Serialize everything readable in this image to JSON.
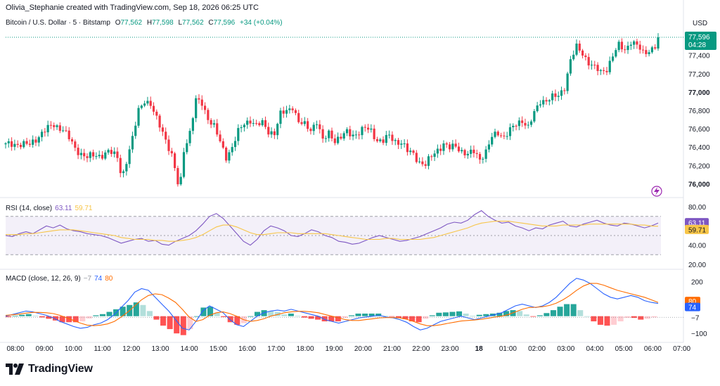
{
  "header": {
    "attribution": "Olivia_Stephanie created with TradingView.com, Sep 18, 2026 06:25 UTC"
  },
  "symbol": {
    "name": "Bitcoin / U.S. Dollar · 5 · Bitstamp",
    "open_label": "O",
    "open": "77,562",
    "high_label": "H",
    "high": "77,598",
    "low_label": "L",
    "low": "77,562",
    "close_label": "C",
    "close": "77,596",
    "change": "+34 (+0.04%)"
  },
  "currency": "USD",
  "price_badge": {
    "price": "77,596",
    "countdown": "04:28",
    "color": "#089981"
  },
  "rsi_label": {
    "title": "RSI (14, close)",
    "rsi_value": "63.11",
    "ma_value": "59.71"
  },
  "macd_label": {
    "title": "MACD (close, 12, 26, 9)",
    "hist_value": "−7",
    "macd_value": "74",
    "signal_value": "80"
  },
  "logo": {
    "text": "TradingView"
  },
  "colors": {
    "up": "#089981",
    "down": "#f23645",
    "rsi_line": "#7e57c2",
    "rsi_ma": "#f7c548",
    "macd_line": "#2962ff",
    "signal_line": "#ff6d00",
    "hist_up_strong": "#26a69a",
    "hist_up_weak": "#b2dfdb",
    "hist_down_strong": "#ff5252",
    "hist_down_weak": "#ffcdd2"
  },
  "chart_data": [
    {
      "type": "candlestick",
      "title": "Bitcoin / U.S. Dollar · 5 · Bitstamp",
      "ylabel": "USD",
      "price_ticks": [
        {
          "label": "77,400",
          "value": 77400,
          "bold": false
        },
        {
          "label": "77,200",
          "value": 77200,
          "bold": false
        },
        {
          "label": "77,000",
          "value": 77000,
          "bold": true
        },
        {
          "label": "76,800",
          "value": 76800,
          "bold": false
        },
        {
          "label": "76,600",
          "value": 76600,
          "bold": false
        },
        {
          "label": "76,400",
          "value": 76400,
          "bold": false
        },
        {
          "label": "76,200",
          "value": 76200,
          "bold": false
        },
        {
          "label": "76,000",
          "value": 76000,
          "bold": true
        }
      ],
      "ylim": [
        75950,
        77650
      ],
      "time_labels": [
        {
          "label": "08:00",
          "bold": false
        },
        {
          "label": "09:00",
          "bold": false
        },
        {
          "label": "10:00",
          "bold": false
        },
        {
          "label": "11:00",
          "bold": false
        },
        {
          "label": "12:00",
          "bold": false
        },
        {
          "label": "13:00",
          "bold": false
        },
        {
          "label": "14:00",
          "bold": false
        },
        {
          "label": "15:00",
          "bold": false
        },
        {
          "label": "16:00",
          "bold": false
        },
        {
          "label": "17:00",
          "bold": false
        },
        {
          "label": "18:00",
          "bold": false
        },
        {
          "label": "19:00",
          "bold": false
        },
        {
          "label": "20:00",
          "bold": false
        },
        {
          "label": "21:00",
          "bold": false
        },
        {
          "label": "22:00",
          "bold": false
        },
        {
          "label": "23:00",
          "bold": false
        },
        {
          "label": "18",
          "bold": true
        },
        {
          "label": "01:00",
          "bold": false
        },
        {
          "label": "02:00",
          "bold": false
        },
        {
          "label": "03:00",
          "bold": false
        },
        {
          "label": "04:00",
          "bold": false
        },
        {
          "label": "05:00",
          "bold": false
        },
        {
          "label": "06:00",
          "bold": false
        },
        {
          "label": "07:00",
          "bold": false
        }
      ],
      "close_path": [
        [
          0,
          76420
        ],
        [
          4,
          76440
        ],
        [
          8,
          76420
        ],
        [
          12,
          76560
        ],
        [
          16,
          76640
        ],
        [
          19,
          76600
        ],
        [
          23,
          76380
        ],
        [
          27,
          76290
        ],
        [
          31,
          76310
        ],
        [
          34,
          76350
        ],
        [
          37,
          76290
        ],
        [
          38,
          76150
        ],
        [
          39,
          76130
        ],
        [
          42,
          76480
        ],
        [
          44,
          76810
        ],
        [
          46,
          76920
        ],
        [
          48,
          76850
        ],
        [
          50,
          76700
        ],
        [
          52,
          76580
        ],
        [
          55,
          76300
        ],
        [
          57,
          76000
        ],
        [
          58,
          76050
        ],
        [
          59,
          76380
        ],
        [
          61,
          76560
        ],
        [
          63,
          76900
        ],
        [
          65,
          76880
        ],
        [
          67,
          76720
        ],
        [
          69,
          76620
        ],
        [
          71,
          76450
        ],
        [
          73,
          76300
        ],
        [
          75,
          76400
        ],
        [
          77,
          76560
        ],
        [
          79,
          76660
        ],
        [
          81,
          76700
        ],
        [
          83,
          76630
        ],
        [
          85,
          76660
        ],
        [
          87,
          76580
        ],
        [
          89,
          76550
        ],
        [
          91,
          76750
        ],
        [
          93,
          76800
        ],
        [
          95,
          76850
        ],
        [
          97,
          76660
        ],
        [
          99,
          76640
        ],
        [
          101,
          76600
        ],
        [
          103,
          76680
        ],
        [
          105,
          76460
        ],
        [
          107,
          76560
        ],
        [
          109,
          76480
        ],
        [
          111,
          76500
        ],
        [
          113,
          76560
        ],
        [
          115,
          76540
        ],
        [
          117,
          76560
        ],
        [
          119,
          76600
        ],
        [
          121,
          76580
        ],
        [
          123,
          76480
        ],
        [
          125,
          76460
        ],
        [
          127,
          76520
        ],
        [
          129,
          76470
        ],
        [
          131,
          76450
        ],
        [
          133,
          76350
        ],
        [
          135,
          76330
        ],
        [
          137,
          76240
        ],
        [
          139,
          76200
        ],
        [
          141,
          76300
        ],
        [
          143,
          76380
        ],
        [
          145,
          76430
        ],
        [
          147,
          76380
        ],
        [
          149,
          76420
        ],
        [
          151,
          76360
        ],
        [
          153,
          76310
        ],
        [
          155,
          76350
        ],
        [
          157,
          76280
        ],
        [
          159,
          76350
        ],
        [
          161,
          76500
        ],
        [
          163,
          76560
        ],
        [
          165,
          76520
        ],
        [
          167,
          76580
        ],
        [
          169,
          76640
        ],
        [
          171,
          76700
        ],
        [
          173,
          76620
        ],
        [
          175,
          76760
        ],
        [
          177,
          76900
        ],
        [
          179,
          76920
        ],
        [
          181,
          76940
        ],
        [
          183,
          76950
        ],
        [
          185,
          77060
        ],
        [
          187,
          77350
        ],
        [
          189,
          77480
        ],
        [
          191,
          77420
        ],
        [
          193,
          77330
        ],
        [
          195,
          77260
        ],
        [
          197,
          77210
        ],
        [
          199,
          77260
        ],
        [
          201,
          77400
        ],
        [
          203,
          77500
        ],
        [
          205,
          77460
        ],
        [
          207,
          77560
        ],
        [
          209,
          77500
        ],
        [
          211,
          77420
        ],
        [
          213,
          77460
        ],
        [
          215,
          77500
        ],
        [
          216,
          77596
        ]
      ],
      "last_price": 77596
    },
    {
      "type": "line",
      "title": "RSI (14, close)",
      "yticks": [
        {
          "label": "80.00",
          "value": 80
        },
        {
          "label": "40.00",
          "value": 40
        },
        {
          "label": "20.00",
          "value": 20
        }
      ],
      "ylim": [
        17,
        86
      ],
      "bands": {
        "upper": 70,
        "middle": 50,
        "lower": 30
      },
      "series": [
        {
          "name": "RSI",
          "color": "#7e57c2",
          "last": 63.11,
          "values": [
            50,
            49,
            52,
            54,
            52,
            56,
            60,
            58,
            61,
            57,
            55,
            54,
            52,
            51,
            50,
            48,
            45,
            42,
            44,
            46,
            47,
            44,
            45,
            41,
            40,
            44,
            47,
            50,
            55,
            62,
            70,
            73,
            68,
            60,
            52,
            44,
            40,
            46,
            55,
            60,
            58,
            55,
            50,
            49,
            52,
            56,
            54,
            50,
            48,
            44,
            43,
            41,
            42,
            45,
            48,
            50,
            48,
            46,
            44,
            45,
            47,
            49,
            52,
            55,
            58,
            62,
            64,
            63,
            66,
            72,
            76,
            70,
            66,
            63,
            64,
            60,
            58,
            55,
            58,
            57,
            61,
            63,
            65,
            60,
            59,
            62,
            64,
            66,
            63,
            61,
            60,
            63,
            62,
            60,
            58,
            60,
            63
          ]
        },
        {
          "name": "RSI MA",
          "color": "#f7c548",
          "last": 59.71,
          "values": [
            51,
            51,
            51,
            52,
            52,
            53,
            54,
            55,
            56,
            56,
            56,
            55,
            54,
            53,
            52,
            51,
            50,
            48,
            47,
            46,
            46,
            46,
            45,
            45,
            44,
            44,
            45,
            46,
            48,
            51,
            55,
            59,
            61,
            61,
            59,
            56,
            53,
            51,
            51,
            52,
            53,
            53,
            53,
            52,
            52,
            52,
            52,
            52,
            51,
            50,
            49,
            48,
            47,
            46,
            46,
            46,
            47,
            47,
            46,
            46,
            46,
            46,
            47,
            48,
            50,
            52,
            54,
            56,
            58,
            61,
            63,
            64,
            65,
            65,
            65,
            64,
            63,
            62,
            61,
            60,
            60,
            60,
            61,
            61,
            61,
            61,
            62,
            62,
            62,
            62,
            62,
            62,
            62,
            61,
            61,
            60,
            59.71
          ]
        }
      ]
    },
    {
      "type": "bar",
      "title": "MACD (close, 12, 26, 9)",
      "yticks": [
        {
          "label": "200",
          "value": 200
        },
        {
          "label": "−100",
          "value": -100
        }
      ],
      "ylim": [
        -140,
        260
      ],
      "series": [
        {
          "name": "MACD",
          "color": "#2962ff",
          "last": 74,
          "values": [
            0,
            10,
            20,
            30,
            25,
            15,
            5,
            -10,
            -30,
            -45,
            -60,
            -70,
            -65,
            -50,
            -40,
            -20,
            10,
            50,
            90,
            140,
            160,
            150,
            110,
            70,
            30,
            -20,
            -70,
            -80,
            -30,
            30,
            60,
            40,
            20,
            -20,
            -50,
            -60,
            -30,
            0,
            20,
            30,
            35,
            30,
            40,
            30,
            20,
            10,
            0,
            -20,
            -30,
            -40,
            -30,
            -20,
            -10,
            -5,
            0,
            5,
            -5,
            -10,
            -20,
            -35,
            -60,
            -80,
            -70,
            -50,
            -30,
            -20,
            -10,
            0,
            -10,
            -20,
            -10,
            0,
            10,
            20,
            40,
            60,
            70,
            60,
            50,
            60,
            80,
            110,
            150,
            190,
            220,
            210,
            190,
            160,
            130,
            110,
            100,
            110,
            120,
            110,
            90,
            80,
            74
          ]
        },
        {
          "name": "Signal",
          "color": "#ff6d00",
          "last": 80,
          "values": [
            5,
            8,
            12,
            18,
            22,
            22,
            20,
            15,
            5,
            -10,
            -25,
            -40,
            -52,
            -55,
            -52,
            -45,
            -30,
            -5,
            25,
            60,
            95,
            120,
            130,
            125,
            105,
            80,
            40,
            -5,
            -30,
            -20,
            5,
            20,
            25,
            15,
            0,
            -20,
            -30,
            -25,
            -15,
            0,
            10,
            20,
            25,
            28,
            28,
            25,
            20,
            10,
            0,
            -10,
            -20,
            -25,
            -25,
            -20,
            -15,
            -10,
            -8,
            -8,
            -10,
            -18,
            -30,
            -45,
            -55,
            -55,
            -50,
            -42,
            -35,
            -28,
            -25,
            -22,
            -18,
            -12,
            -5,
            0,
            10,
            25,
            40,
            50,
            52,
            55,
            62,
            75,
            95,
            120,
            150,
            175,
            190,
            190,
            180,
            165,
            150,
            140,
            130,
            120,
            110,
            95,
            80
          ]
        },
        {
          "name": "Histogram",
          "color": "#26a69a",
          "last": -7,
          "values": [
            -5,
            2,
            8,
            12,
            3,
            -7,
            -15,
            -25,
            -35,
            -35,
            -35,
            -30,
            -13,
            5,
            12,
            25,
            40,
            55,
            65,
            80,
            65,
            30,
            -20,
            -55,
            -75,
            -100,
            -110,
            -75,
            0,
            50,
            55,
            20,
            -5,
            -35,
            -50,
            -40,
            0,
            25,
            35,
            30,
            25,
            10,
            15,
            2,
            -8,
            -15,
            -20,
            -30,
            -30,
            -30,
            -10,
            5,
            15,
            15,
            15,
            15,
            3,
            -2,
            -10,
            -17,
            -30,
            -35,
            -15,
            5,
            20,
            22,
            25,
            28,
            15,
            2,
            8,
            12,
            15,
            20,
            30,
            35,
            30,
            10,
            -2,
            5,
            18,
            35,
            55,
            70,
            70,
            35,
            0,
            -30,
            -50,
            -55,
            -50,
            -30,
            -10,
            -10,
            -20,
            -15,
            -7
          ]
        }
      ]
    }
  ]
}
